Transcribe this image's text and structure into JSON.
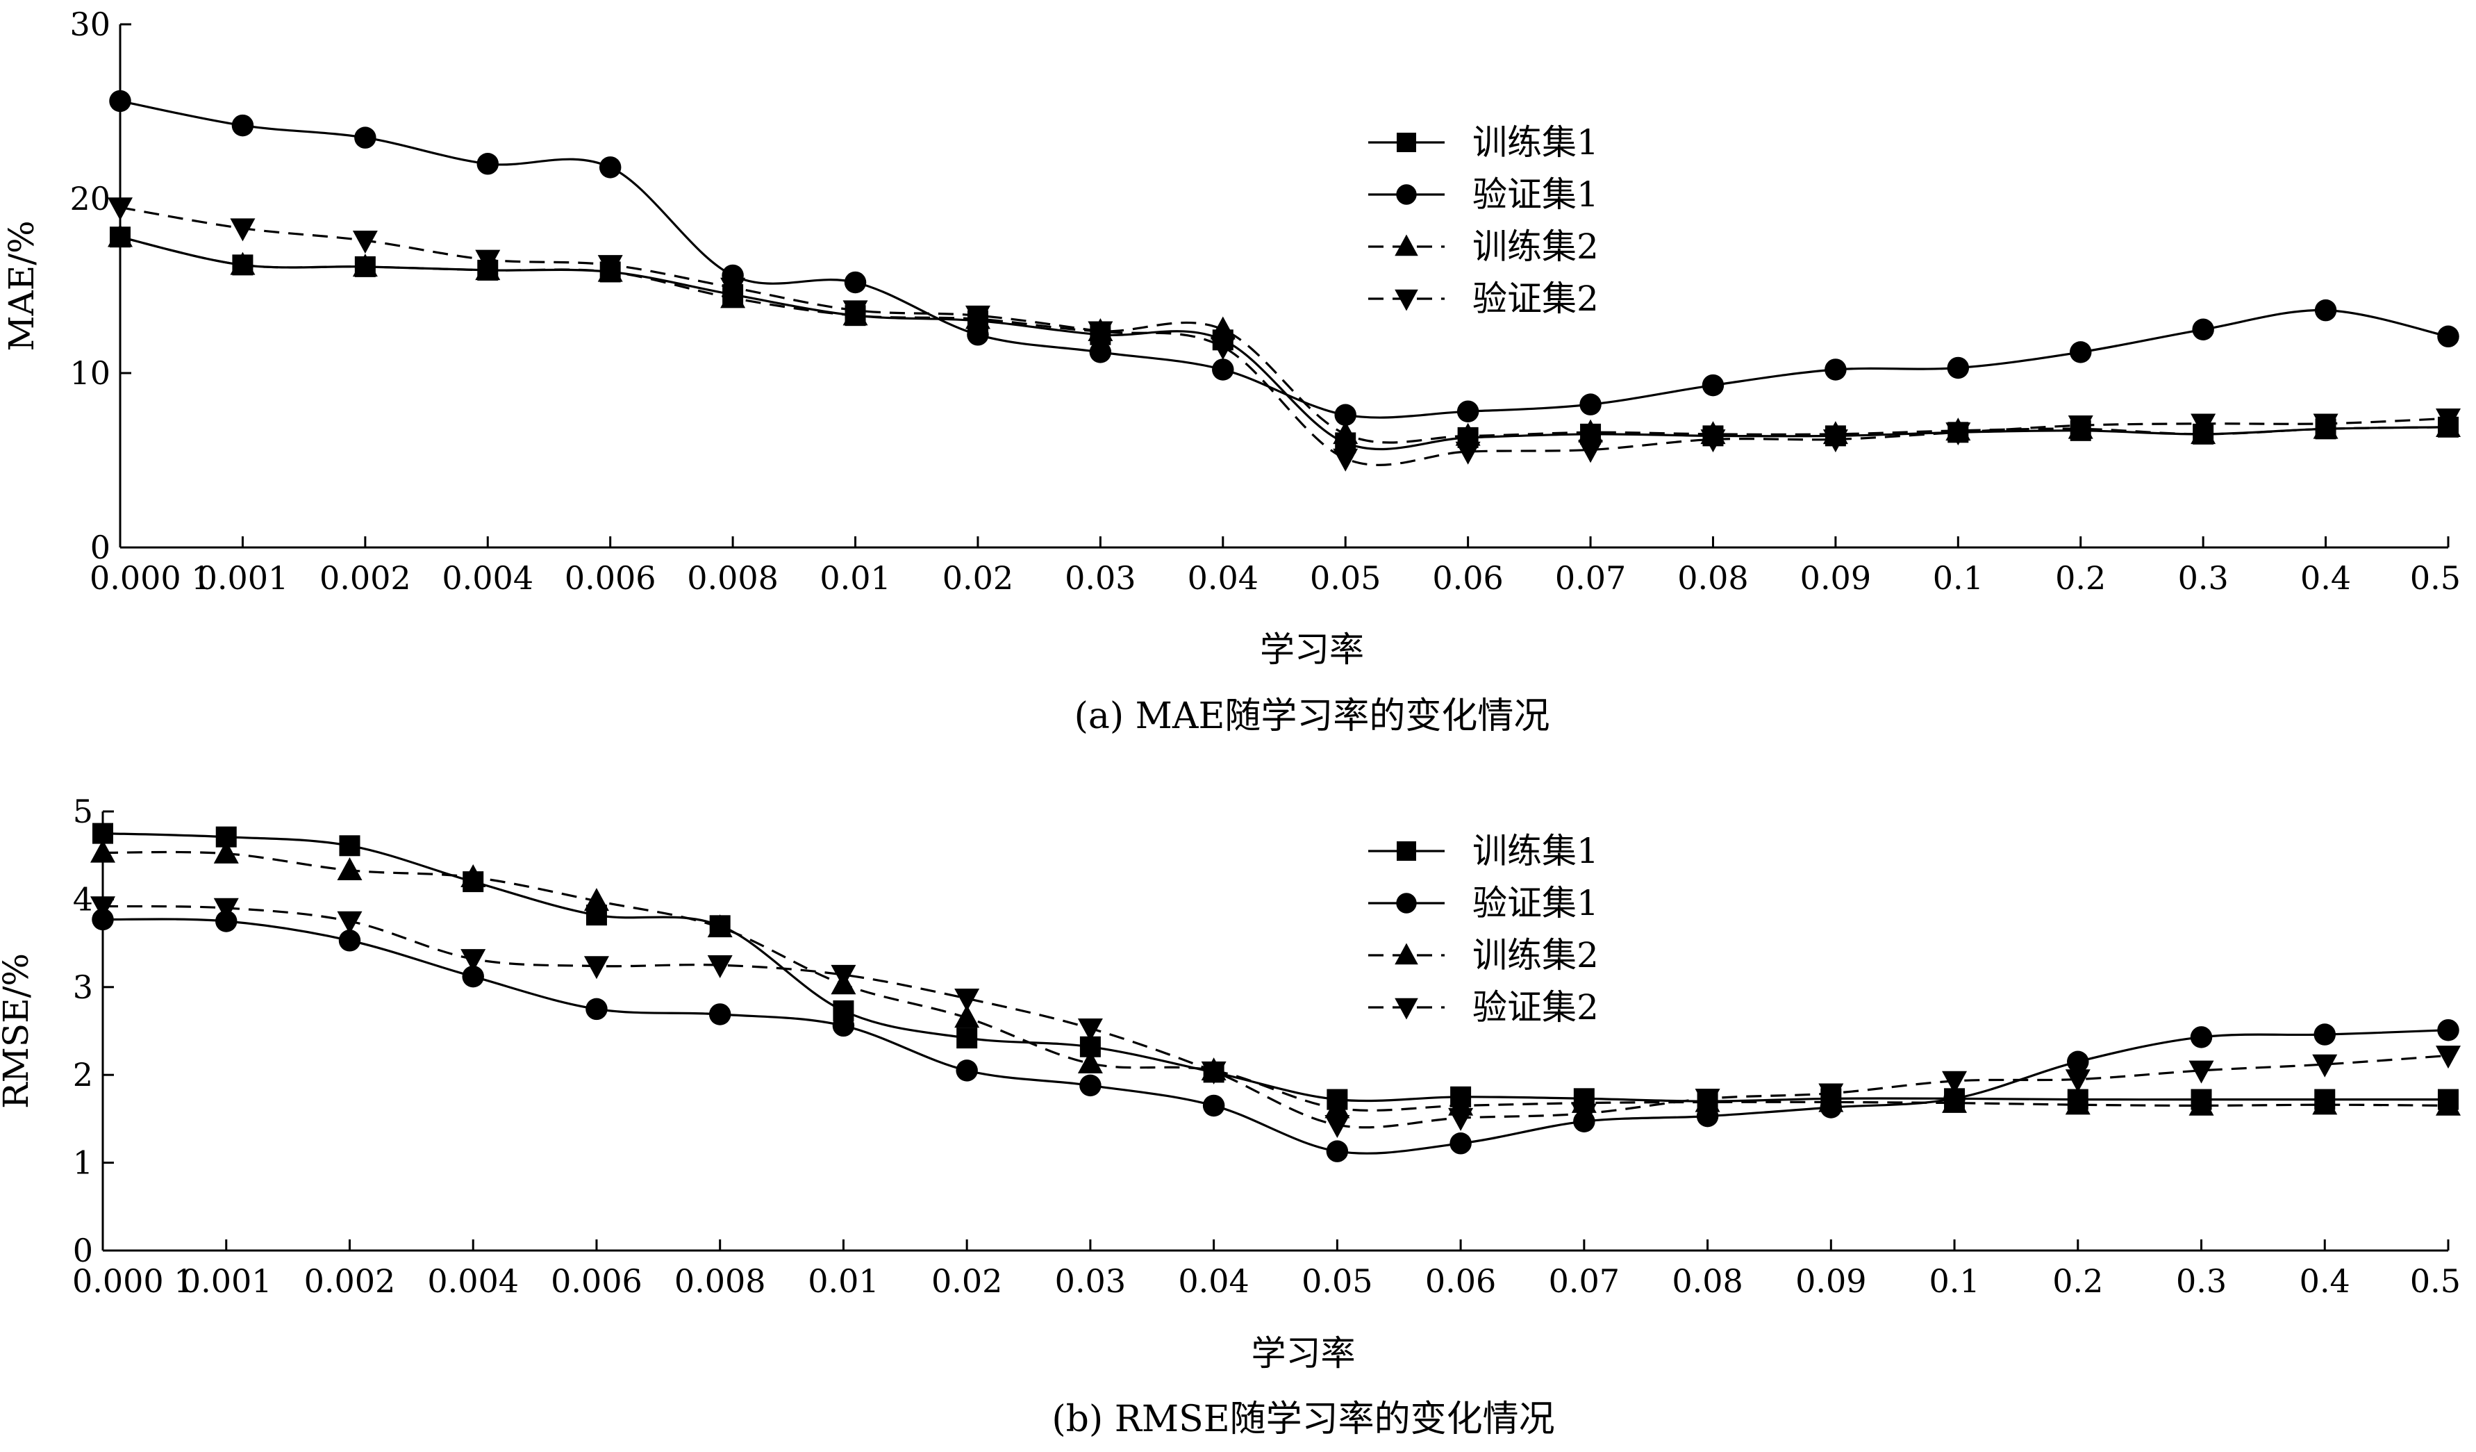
{
  "chart_data": [
    {
      "type": "line",
      "caption": "(a) MAE随学习率的变化情况",
      "xlabel": "学习率",
      "ylabel": "MAE/%",
      "categories": [
        "0.000 1",
        "0.001",
        "0.002",
        "0.004",
        "0.006",
        "0.008",
        "0.01",
        "0.02",
        "0.03",
        "0.04",
        "0.05",
        "0.06",
        "0.07",
        "0.08",
        "0.09",
        "0.1",
        "0.2",
        "0.3",
        "0.4",
        "0.5"
      ],
      "ylim": [
        0,
        30
      ],
      "yticks": [
        "0",
        "10",
        "20",
        "30"
      ],
      "legend_position": "top-center-right",
      "series": [
        {
          "name": "训练集1",
          "line": "solid",
          "marker": "square",
          "values": [
            17.8,
            16.2,
            16.1,
            15.9,
            15.8,
            14.5,
            13.3,
            13.0,
            12.2,
            11.9,
            6.0,
            6.3,
            6.5,
            6.4,
            6.4,
            6.6,
            6.7,
            6.5,
            6.8,
            6.9
          ]
        },
        {
          "name": "验证集1",
          "line": "solid",
          "marker": "circle",
          "values": [
            25.6,
            24.2,
            23.5,
            22.0,
            21.8,
            15.6,
            15.2,
            12.2,
            11.2,
            10.2,
            7.6,
            7.8,
            8.2,
            9.3,
            10.2,
            10.3,
            11.2,
            12.5,
            13.6,
            12.1
          ]
        },
        {
          "name": "训练集2",
          "line": "dashed",
          "marker": "triangle-up",
          "values": [
            17.8,
            16.2,
            16.1,
            15.9,
            15.8,
            14.3,
            13.3,
            13.1,
            12.4,
            12.5,
            6.5,
            6.4,
            6.6,
            6.5,
            6.5,
            6.7,
            6.8,
            6.5,
            6.8,
            6.9
          ]
        },
        {
          "name": "验证集2",
          "line": "dashed",
          "marker": "triangle-down",
          "values": [
            19.5,
            18.3,
            17.6,
            16.5,
            16.2,
            14.9,
            13.6,
            13.3,
            12.4,
            11.5,
            5.1,
            5.5,
            5.6,
            6.2,
            6.2,
            6.6,
            7.0,
            7.1,
            7.1,
            7.4
          ]
        }
      ]
    },
    {
      "type": "line",
      "caption": "(b) RMSE随学习率的变化情况",
      "xlabel": "学习率",
      "ylabel": "RMSE/%",
      "categories": [
        "0.000 1",
        "0.001",
        "0.002",
        "0.004",
        "0.006",
        "0.008",
        "0.01",
        "0.02",
        "0.03",
        "0.04",
        "0.05",
        "0.06",
        "0.07",
        "0.08",
        "0.09",
        "0.1",
        "0.2",
        "0.3",
        "0.4",
        "0.5"
      ],
      "ylim": [
        0,
        5
      ],
      "yticks": [
        "0",
        "1",
        "2",
        "3",
        "4",
        "5"
      ],
      "legend_position": "top-center-right",
      "series": [
        {
          "name": "训练集1",
          "line": "solid",
          "marker": "square",
          "values": [
            4.75,
            4.71,
            4.61,
            4.2,
            3.82,
            3.7,
            2.73,
            2.42,
            2.32,
            2.03,
            1.72,
            1.75,
            1.73,
            1.7,
            1.73,
            1.73,
            1.72,
            1.72,
            1.72,
            1.72
          ]
        },
        {
          "name": "验证集1",
          "line": "solid",
          "marker": "circle",
          "values": [
            3.77,
            3.75,
            3.53,
            3.12,
            2.75,
            2.69,
            2.56,
            2.05,
            1.88,
            1.65,
            1.13,
            1.22,
            1.47,
            1.53,
            1.63,
            1.73,
            2.15,
            2.43,
            2.46,
            2.51
          ]
        },
        {
          "name": "训练集2",
          "line": "dashed",
          "marker": "triangle-up",
          "values": [
            4.53,
            4.52,
            4.33,
            4.25,
            3.98,
            3.68,
            3.03,
            2.65,
            2.13,
            2.05,
            1.62,
            1.65,
            1.68,
            1.69,
            1.69,
            1.68,
            1.66,
            1.65,
            1.66,
            1.65
          ]
        },
        {
          "name": "验证集2",
          "line": "dashed",
          "marker": "triangle-down",
          "values": [
            3.92,
            3.9,
            3.75,
            3.32,
            3.24,
            3.25,
            3.14,
            2.87,
            2.53,
            2.04,
            1.43,
            1.51,
            1.56,
            1.73,
            1.79,
            1.93,
            1.95,
            2.05,
            2.12,
            2.22
          ]
        }
      ]
    }
  ]
}
